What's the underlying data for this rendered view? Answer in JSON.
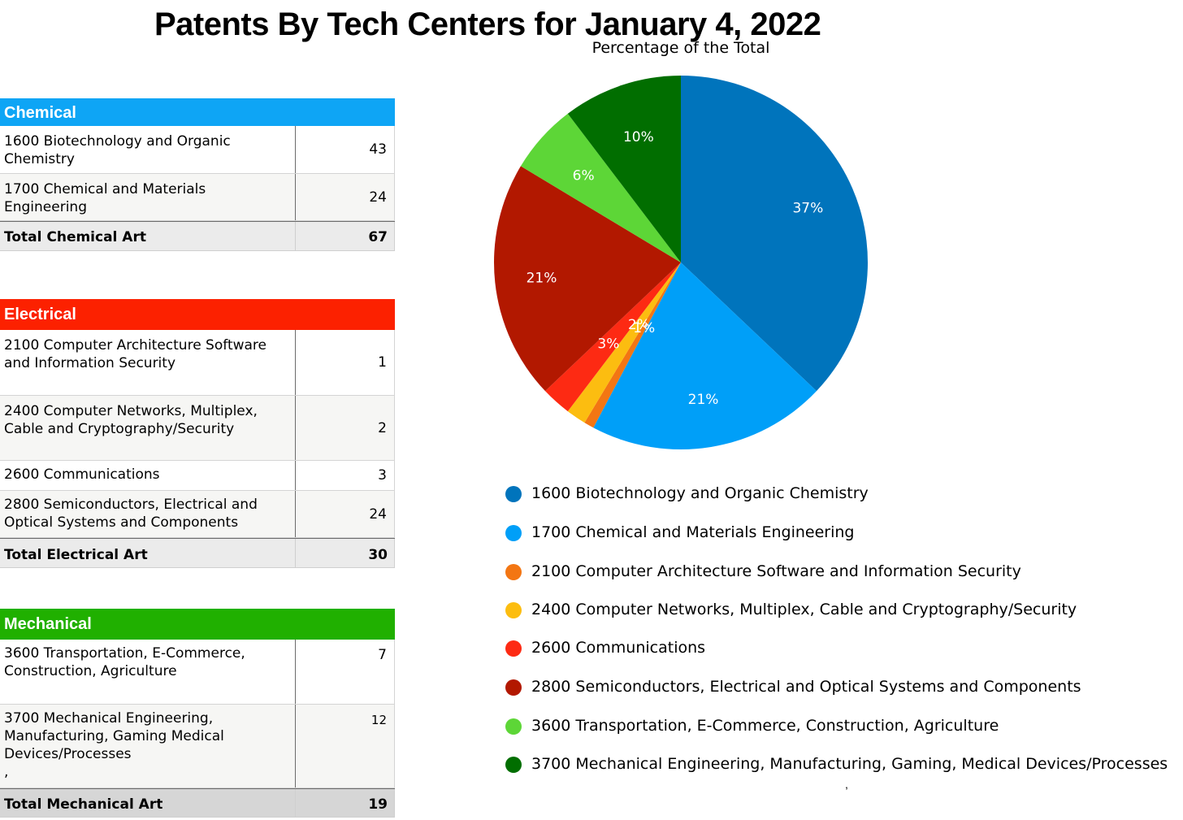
{
  "page_title": "Patents By Tech Centers for January 4, 2022",
  "colors": {
    "chemical_header": "#0ea5f5",
    "electrical_header": "#fc2100",
    "mechanical_header": "#20b000"
  },
  "tables": [
    {
      "header": "Chemical",
      "rows": [
        {
          "name": "1600 Biotechnology and Organic\nChemistry",
          "value": "43"
        },
        {
          "name": "1700 Chemical and Materials\nEngineering",
          "value": "24"
        }
      ],
      "total": {
        "name": "Total Chemical Art",
        "value": "67"
      }
    },
    {
      "header": "Electrical",
      "rows": [
        {
          "name": "2100 Computer Architecture Software\nand Information Security",
          "value": "1"
        },
        {
          "name": "2400 Computer Networks, Multiplex,\nCable and Cryptography/Security",
          "value": "2"
        },
        {
          "name": "2600 Communications",
          "value": "3"
        },
        {
          "name": "2800 Semiconductors, Electrical and\nOptical Systems and Components",
          "value": "24"
        }
      ],
      "total": {
        "name": "Total Electrical Art",
        "value": "30"
      }
    },
    {
      "header": "Mechanical",
      "rows": [
        {
          "name": "3600 Transportation, E-Commerce,\nConstruction, Agriculture",
          "value": "7"
        },
        {
          "name": "3700 Mechanical Engineering,\nManufacturing, Gaming Medical\nDevices/Processes\n,",
          "value": "12"
        }
      ],
      "total": {
        "name": "Total Mechanical Art",
        "value": "19"
      }
    }
  ],
  "chart_data": {
    "type": "pie",
    "title": "Percentage of the Total",
    "legend_position": "bottom",
    "categories": [
      "1600 Biotechnology and Organic Chemistry",
      "1700 Chemical and Materials Engineering",
      "2100 Computer Architecture Software and Information Security",
      "2400 Computer Networks, Multiplex, Cable and Cryptography/Security",
      "2600 Communications",
      "2800 Semiconductors, Electrical and Optical Systems and Components",
      "3600 Transportation, E-Commerce, Construction, Agriculture",
      "3700 Mechanical Engineering, Manufacturing, Gaming, Medical Devices/Processes"
    ],
    "values": [
      43,
      24,
      1,
      2,
      3,
      24,
      7,
      12
    ],
    "data_labels": [
      "37%",
      "21%",
      "1%",
      "2%",
      "3%",
      "21%",
      "6%",
      "10%"
    ],
    "colors": [
      "#0074bc",
      "#009ff8",
      "#f37613",
      "#fcbd10",
      "#fd2a13",
      "#b21800",
      "#5dd637",
      "#016e00"
    ]
  },
  "stray_mark": ","
}
